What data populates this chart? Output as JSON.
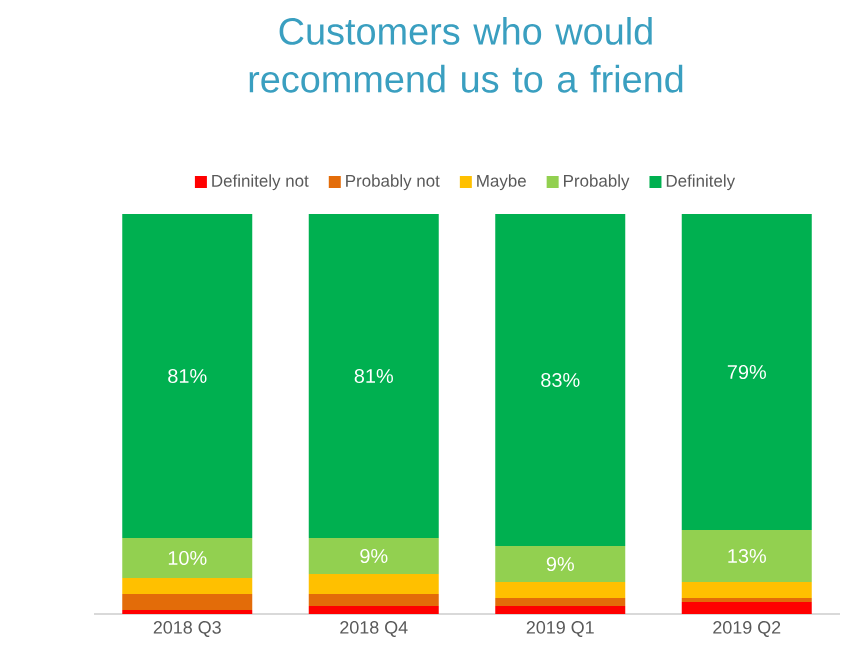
{
  "chart_data": {
    "type": "bar",
    "title": "Customers who would recommend us to a friend",
    "categories": [
      "2018 Q3",
      "2018 Q4",
      "2019 Q1",
      "2019 Q2"
    ],
    "stacked": true,
    "tick_labels": "x",
    "legend": "top",
    "series": [
      {
        "name": "Definitely not",
        "color": "#ff0000",
        "values": [
          1,
          2,
          2,
          3
        ]
      },
      {
        "name": "Probably not",
        "color": "#e36c09",
        "values": [
          4,
          3,
          2,
          1
        ]
      },
      {
        "name": "Maybe",
        "color": "#ffc000",
        "values": [
          4,
          5,
          4,
          4
        ]
      },
      {
        "name": "Probably",
        "color": "#92d050",
        "values": [
          10,
          9,
          9,
          13
        ],
        "value_labels": [
          "10%",
          "9%",
          "9%",
          "13%"
        ]
      },
      {
        "name": "Definitely",
        "color": "#00b050",
        "values": [
          81,
          81,
          83,
          79
        ],
        "value_labels": [
          "81%",
          "81%",
          "83%",
          "79%"
        ]
      }
    ]
  }
}
